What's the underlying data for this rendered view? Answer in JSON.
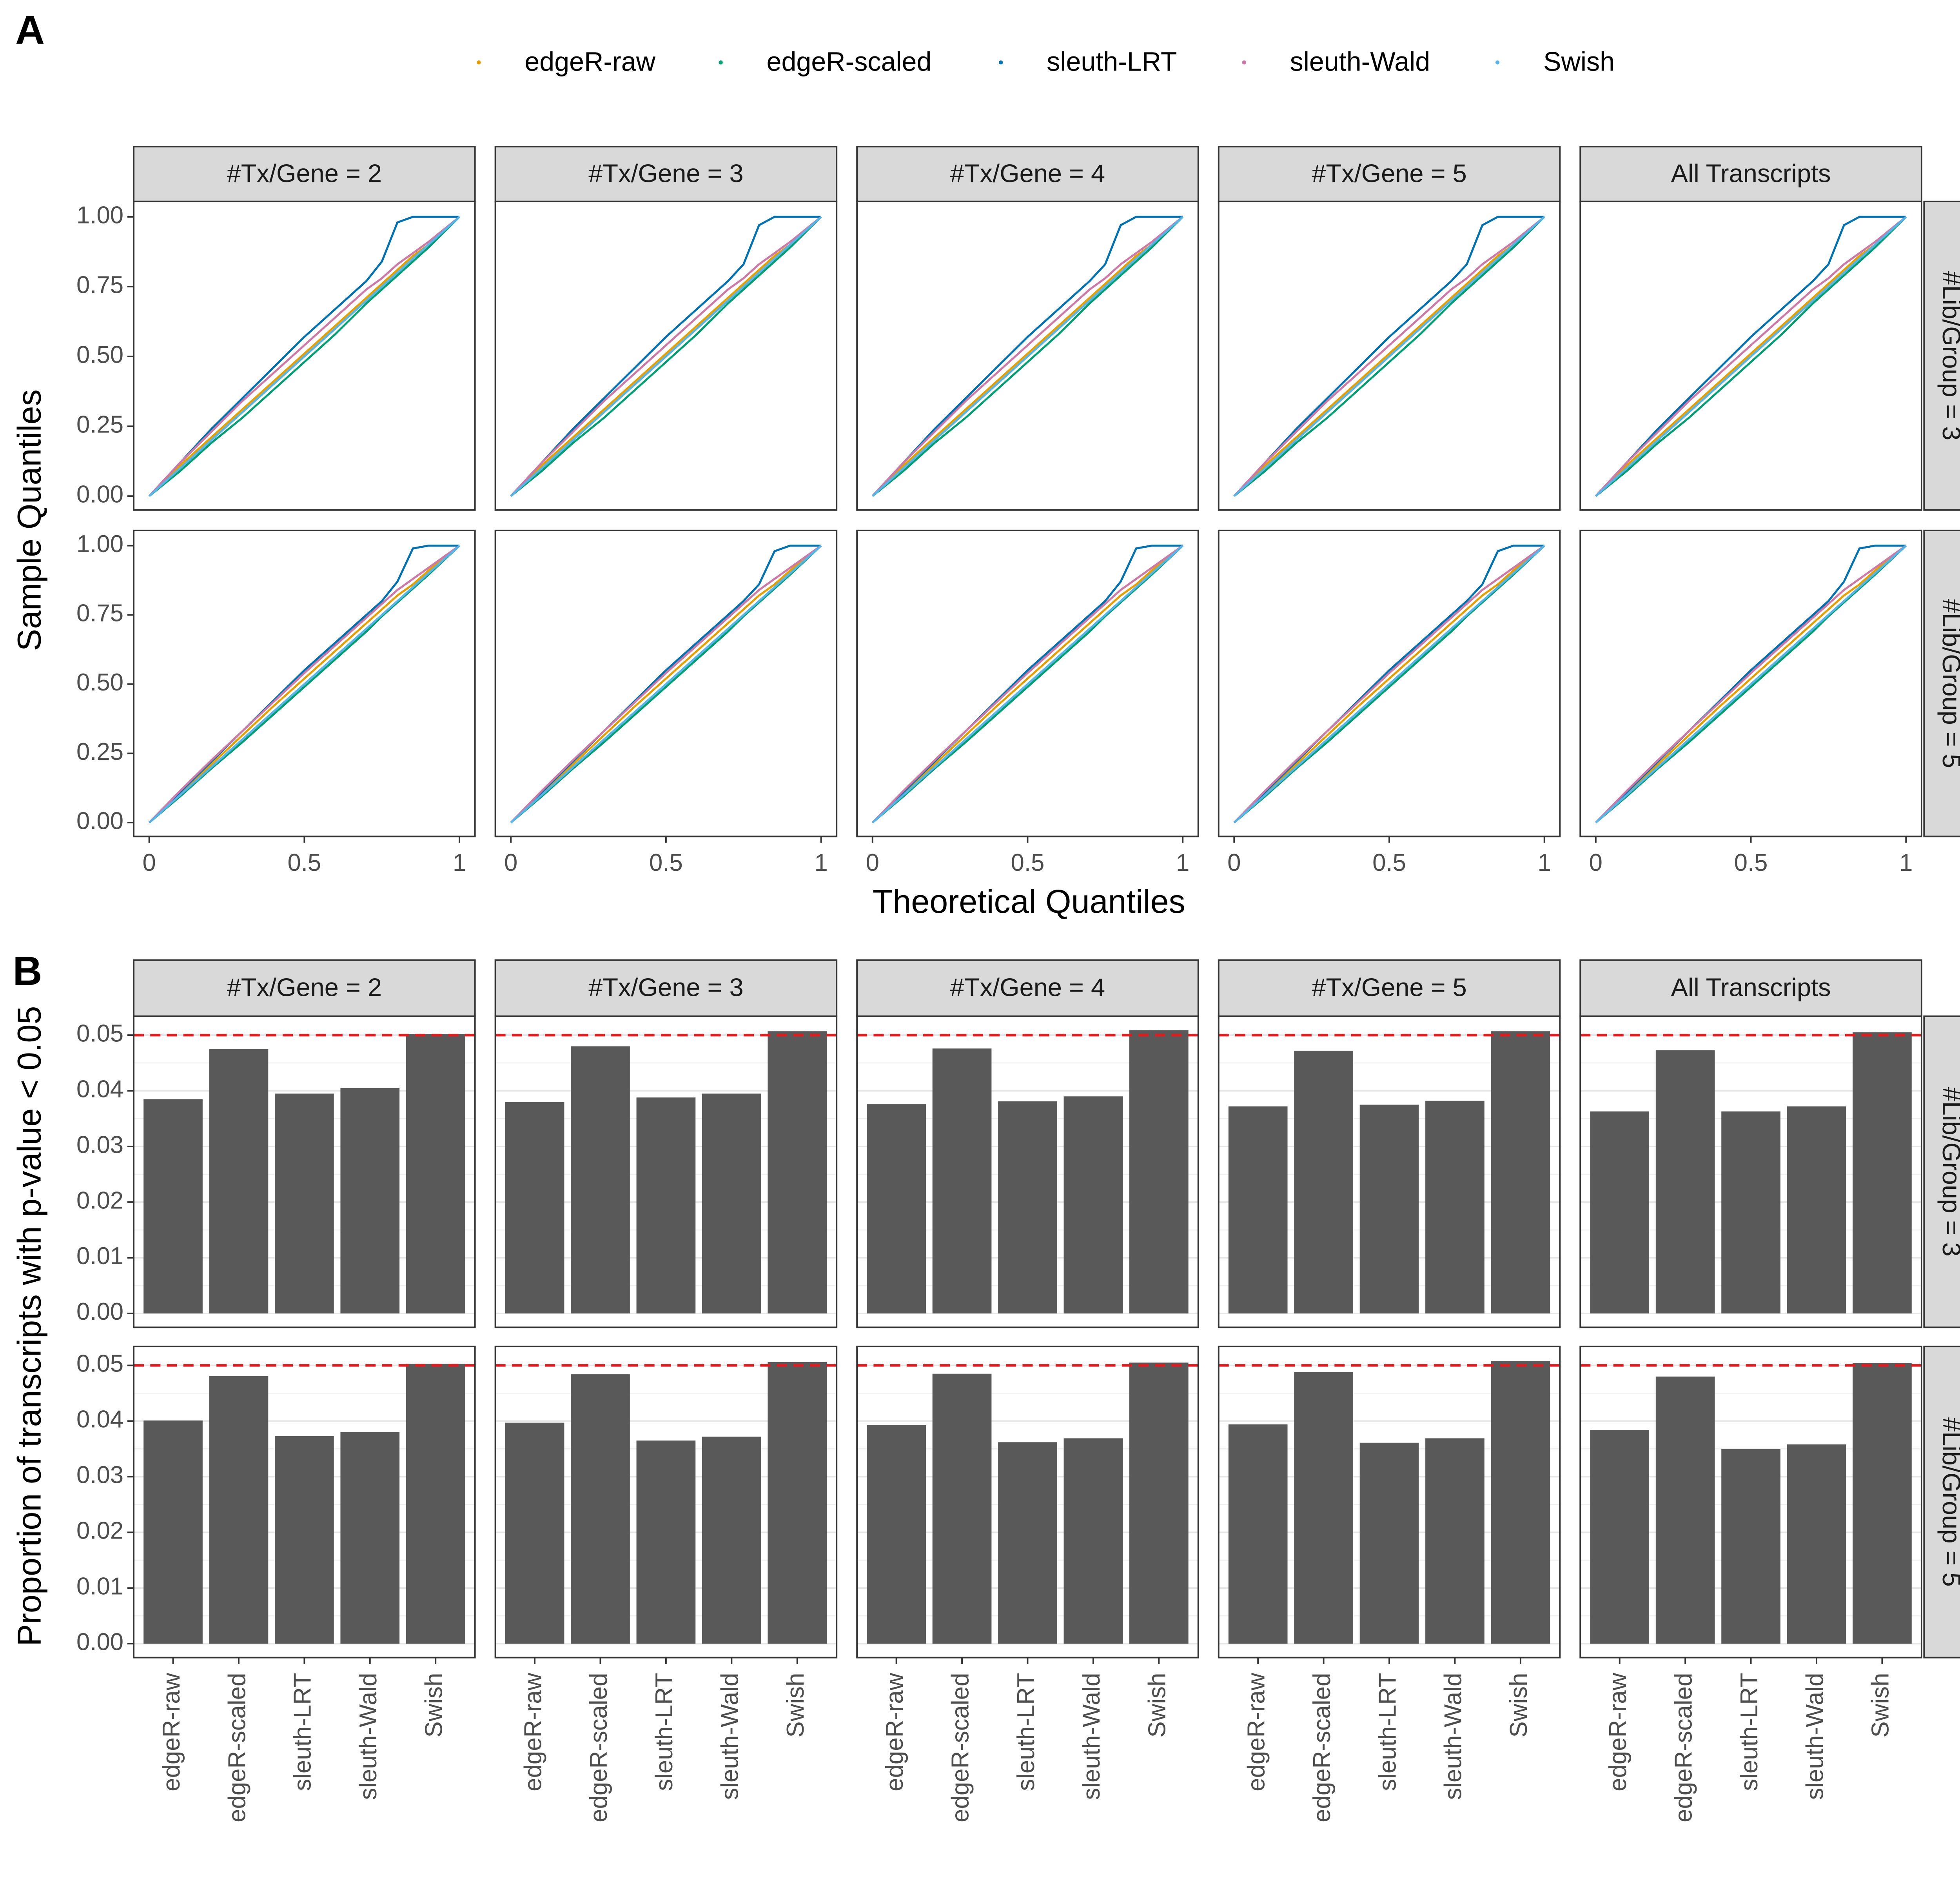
{
  "chart_data": [
    {
      "type": "line",
      "panel_label": "A",
      "xlabel": "Theoretical Quantiles",
      "ylabel": "Sample Quantiles",
      "columns": [
        "#Tx/Gene = 2",
        "#Tx/Gene = 3",
        "#Tx/Gene = 4",
        "#Tx/Gene = 5",
        "All Transcripts"
      ],
      "rows": [
        "#Lib/Group = 3",
        "#Lib/Group = 5"
      ],
      "series": [
        {
          "name": "edgeR-raw",
          "color": "#E69F00"
        },
        {
          "name": "edgeR-scaled",
          "color": "#009E73"
        },
        {
          "name": "sleuth-LRT",
          "color": "#0072B2"
        },
        {
          "name": "sleuth-Wald",
          "color": "#CC79A7"
        },
        {
          "name": "Swish",
          "color": "#56B4E9"
        }
      ],
      "xlim": [
        -0.05,
        1.05
      ],
      "xticks": [
        0,
        0.5,
        1
      ],
      "ylim": [
        -0.05,
        1.055
      ],
      "yticks": [
        {
          "value": 0,
          "label": "0.00"
        },
        {
          "value": 0.25,
          "label": "0.25"
        },
        {
          "value": 0.5,
          "label": "0.50"
        },
        {
          "value": 0.75,
          "label": "0.75"
        },
        {
          "value": 1,
          "label": "1.00"
        }
      ],
      "grid": false,
      "x": [
        0,
        0.1,
        0.2,
        0.3,
        0.4,
        0.5,
        0.6,
        0.7,
        0.75,
        0.8,
        0.85,
        0.9,
        1
      ],
      "panels": [
        [
          [
            0,
            0.11,
            0.21,
            0.31,
            0.41,
            0.51,
            0.61,
            0.71,
            0.76,
            0.81,
            0.86,
            0.9,
            1
          ],
          [
            0,
            0.09,
            0.19,
            0.28,
            0.38,
            0.48,
            0.58,
            0.69,
            0.74,
            0.79,
            0.84,
            0.89,
            1
          ],
          [
            0,
            0.12,
            0.24,
            0.35,
            0.46,
            0.57,
            0.67,
            0.77,
            0.84,
            0.98,
            1,
            1,
            1
          ],
          [
            0,
            0.12,
            0.23,
            0.34,
            0.44,
            0.54,
            0.64,
            0.74,
            0.78,
            0.83,
            0.87,
            0.91,
            1
          ],
          [
            0,
            0.1,
            0.2,
            0.3,
            0.4,
            0.5,
            0.6,
            0.7,
            0.75,
            0.8,
            0.85,
            0.9,
            1
          ]
        ],
        [
          [
            0,
            0.11,
            0.21,
            0.31,
            0.41,
            0.51,
            0.61,
            0.71,
            0.76,
            0.81,
            0.86,
            0.9,
            1
          ],
          [
            0,
            0.09,
            0.19,
            0.28,
            0.38,
            0.48,
            0.58,
            0.69,
            0.74,
            0.79,
            0.84,
            0.89,
            1
          ],
          [
            0,
            0.12,
            0.24,
            0.35,
            0.46,
            0.57,
            0.67,
            0.77,
            0.83,
            0.97,
            1,
            1,
            1
          ],
          [
            0,
            0.12,
            0.23,
            0.34,
            0.44,
            0.54,
            0.64,
            0.74,
            0.78,
            0.83,
            0.87,
            0.91,
            1
          ],
          [
            0,
            0.1,
            0.2,
            0.3,
            0.4,
            0.5,
            0.6,
            0.7,
            0.75,
            0.8,
            0.85,
            0.9,
            1
          ]
        ],
        [
          [
            0,
            0.11,
            0.21,
            0.31,
            0.41,
            0.51,
            0.61,
            0.71,
            0.76,
            0.81,
            0.86,
            0.9,
            1
          ],
          [
            0,
            0.09,
            0.19,
            0.28,
            0.38,
            0.48,
            0.58,
            0.69,
            0.74,
            0.79,
            0.84,
            0.89,
            1
          ],
          [
            0,
            0.12,
            0.24,
            0.35,
            0.46,
            0.57,
            0.67,
            0.77,
            0.83,
            0.97,
            1,
            1,
            1
          ],
          [
            0,
            0.12,
            0.23,
            0.34,
            0.44,
            0.54,
            0.64,
            0.74,
            0.78,
            0.83,
            0.87,
            0.91,
            1
          ],
          [
            0,
            0.1,
            0.2,
            0.3,
            0.4,
            0.5,
            0.6,
            0.7,
            0.75,
            0.8,
            0.85,
            0.9,
            1
          ]
        ],
        [
          [
            0,
            0.11,
            0.21,
            0.31,
            0.41,
            0.51,
            0.61,
            0.71,
            0.76,
            0.81,
            0.86,
            0.9,
            1
          ],
          [
            0,
            0.09,
            0.19,
            0.28,
            0.38,
            0.48,
            0.58,
            0.69,
            0.74,
            0.79,
            0.84,
            0.89,
            1
          ],
          [
            0,
            0.12,
            0.24,
            0.35,
            0.46,
            0.57,
            0.67,
            0.77,
            0.83,
            0.97,
            1,
            1,
            1
          ],
          [
            0,
            0.12,
            0.23,
            0.34,
            0.44,
            0.54,
            0.64,
            0.74,
            0.78,
            0.83,
            0.87,
            0.91,
            1
          ],
          [
            0,
            0.1,
            0.2,
            0.3,
            0.4,
            0.5,
            0.6,
            0.7,
            0.75,
            0.8,
            0.85,
            0.9,
            1
          ]
        ],
        [
          [
            0,
            0.11,
            0.21,
            0.31,
            0.41,
            0.51,
            0.61,
            0.71,
            0.76,
            0.81,
            0.86,
            0.9,
            1
          ],
          [
            0,
            0.09,
            0.19,
            0.28,
            0.38,
            0.48,
            0.58,
            0.69,
            0.74,
            0.79,
            0.84,
            0.89,
            1
          ],
          [
            0,
            0.12,
            0.24,
            0.35,
            0.46,
            0.57,
            0.67,
            0.77,
            0.83,
            0.97,
            1,
            1,
            1
          ],
          [
            0,
            0.12,
            0.23,
            0.34,
            0.44,
            0.54,
            0.64,
            0.74,
            0.78,
            0.83,
            0.87,
            0.91,
            1
          ],
          [
            0,
            0.1,
            0.2,
            0.3,
            0.4,
            0.5,
            0.6,
            0.7,
            0.75,
            0.8,
            0.85,
            0.9,
            1
          ]
        ],
        [
          [
            0,
            0.105,
            0.21,
            0.315,
            0.42,
            0.52,
            0.62,
            0.72,
            0.77,
            0.82,
            0.86,
            0.91,
            1
          ],
          [
            0,
            0.095,
            0.195,
            0.29,
            0.39,
            0.49,
            0.59,
            0.69,
            0.745,
            0.795,
            0.845,
            0.895,
            1
          ],
          [
            0,
            0.11,
            0.22,
            0.33,
            0.44,
            0.55,
            0.65,
            0.75,
            0.8,
            0.87,
            0.99,
            1,
            1
          ],
          [
            0,
            0.115,
            0.225,
            0.33,
            0.435,
            0.54,
            0.64,
            0.74,
            0.79,
            0.84,
            0.88,
            0.92,
            1
          ],
          [
            0,
            0.1,
            0.2,
            0.3,
            0.4,
            0.5,
            0.6,
            0.7,
            0.75,
            0.8,
            0.85,
            0.9,
            1
          ]
        ],
        [
          [
            0,
            0.105,
            0.21,
            0.315,
            0.42,
            0.52,
            0.62,
            0.72,
            0.77,
            0.82,
            0.86,
            0.91,
            1
          ],
          [
            0,
            0.095,
            0.195,
            0.29,
            0.39,
            0.49,
            0.59,
            0.69,
            0.745,
            0.795,
            0.845,
            0.895,
            1
          ],
          [
            0,
            0.11,
            0.22,
            0.33,
            0.44,
            0.55,
            0.65,
            0.75,
            0.8,
            0.86,
            0.98,
            1,
            1
          ],
          [
            0,
            0.115,
            0.225,
            0.33,
            0.435,
            0.54,
            0.64,
            0.74,
            0.79,
            0.84,
            0.88,
            0.92,
            1
          ],
          [
            0,
            0.1,
            0.2,
            0.3,
            0.4,
            0.5,
            0.6,
            0.7,
            0.75,
            0.8,
            0.85,
            0.9,
            1
          ]
        ],
        [
          [
            0,
            0.105,
            0.21,
            0.315,
            0.42,
            0.52,
            0.62,
            0.72,
            0.77,
            0.82,
            0.86,
            0.91,
            1
          ],
          [
            0,
            0.095,
            0.195,
            0.29,
            0.39,
            0.49,
            0.59,
            0.69,
            0.745,
            0.795,
            0.845,
            0.895,
            1
          ],
          [
            0,
            0.11,
            0.22,
            0.33,
            0.44,
            0.55,
            0.65,
            0.75,
            0.8,
            0.87,
            0.99,
            1,
            1
          ],
          [
            0,
            0.115,
            0.225,
            0.33,
            0.435,
            0.54,
            0.64,
            0.74,
            0.79,
            0.84,
            0.88,
            0.92,
            1
          ],
          [
            0,
            0.1,
            0.2,
            0.3,
            0.4,
            0.5,
            0.6,
            0.7,
            0.75,
            0.8,
            0.85,
            0.9,
            1
          ]
        ],
        [
          [
            0,
            0.105,
            0.21,
            0.315,
            0.42,
            0.52,
            0.62,
            0.72,
            0.77,
            0.82,
            0.86,
            0.91,
            1
          ],
          [
            0,
            0.095,
            0.195,
            0.29,
            0.39,
            0.49,
            0.59,
            0.69,
            0.745,
            0.795,
            0.845,
            0.895,
            1
          ],
          [
            0,
            0.11,
            0.22,
            0.33,
            0.44,
            0.55,
            0.65,
            0.75,
            0.8,
            0.86,
            0.98,
            1,
            1
          ],
          [
            0,
            0.115,
            0.225,
            0.33,
            0.435,
            0.54,
            0.64,
            0.74,
            0.79,
            0.84,
            0.88,
            0.92,
            1
          ],
          [
            0,
            0.1,
            0.2,
            0.3,
            0.4,
            0.5,
            0.6,
            0.7,
            0.75,
            0.8,
            0.85,
            0.9,
            1
          ]
        ],
        [
          [
            0,
            0.105,
            0.21,
            0.315,
            0.42,
            0.52,
            0.62,
            0.72,
            0.77,
            0.82,
            0.86,
            0.91,
            1
          ],
          [
            0,
            0.095,
            0.195,
            0.29,
            0.39,
            0.49,
            0.59,
            0.69,
            0.745,
            0.795,
            0.845,
            0.895,
            1
          ],
          [
            0,
            0.11,
            0.22,
            0.33,
            0.44,
            0.55,
            0.65,
            0.75,
            0.8,
            0.87,
            0.99,
            1,
            1
          ],
          [
            0,
            0.115,
            0.225,
            0.33,
            0.435,
            0.54,
            0.64,
            0.74,
            0.79,
            0.84,
            0.88,
            0.92,
            1
          ],
          [
            0,
            0.1,
            0.2,
            0.3,
            0.4,
            0.5,
            0.6,
            0.7,
            0.75,
            0.8,
            0.85,
            0.9,
            1
          ]
        ]
      ]
    },
    {
      "type": "bar",
      "panel_label": "B",
      "ylabel": "Proportion of transcripts with p-value < 0.05",
      "columns": [
        "#Tx/Gene = 2",
        "#Tx/Gene = 3",
        "#Tx/Gene = 4",
        "#Tx/Gene = 5",
        "All Transcripts"
      ],
      "rows": [
        "#Lib/Group = 3",
        "#Lib/Group = 5"
      ],
      "categories": [
        "edgeR-raw",
        "edgeR-scaled",
        "sleuth-LRT",
        "sleuth-Wald",
        "Swish"
      ],
      "color": "#595959",
      "hline": 0.05,
      "hline_color": "#e41a1c",
      "ylim": [
        -0.0025,
        0.0534
      ],
      "yticks": [
        {
          "value": 0,
          "label": "0.00"
        },
        {
          "value": 0.01,
          "label": "0.01"
        },
        {
          "value": 0.02,
          "label": "0.02"
        },
        {
          "value": 0.03,
          "label": "0.03"
        },
        {
          "value": 0.04,
          "label": "0.04"
        },
        {
          "value": 0.05,
          "label": "0.05"
        }
      ],
      "grid": true,
      "panels": [
        [
          0.0385,
          0.0475,
          0.0395,
          0.0405,
          0.0502
        ],
        [
          0.038,
          0.048,
          0.0388,
          0.0395,
          0.0507
        ],
        [
          0.0376,
          0.0476,
          0.0381,
          0.039,
          0.0509
        ],
        [
          0.0372,
          0.0472,
          0.0375,
          0.0382,
          0.0507
        ],
        [
          0.0363,
          0.0473,
          0.0363,
          0.0372,
          0.0505
        ],
        [
          0.0401,
          0.0481,
          0.0373,
          0.038,
          0.0503
        ],
        [
          0.0397,
          0.0484,
          0.0365,
          0.0372,
          0.0506
        ],
        [
          0.0393,
          0.0485,
          0.0362,
          0.0369,
          0.0505
        ],
        [
          0.0394,
          0.0488,
          0.0361,
          0.0369,
          0.0508
        ],
        [
          0.0384,
          0.048,
          0.035,
          0.0358,
          0.0504
        ]
      ]
    }
  ]
}
